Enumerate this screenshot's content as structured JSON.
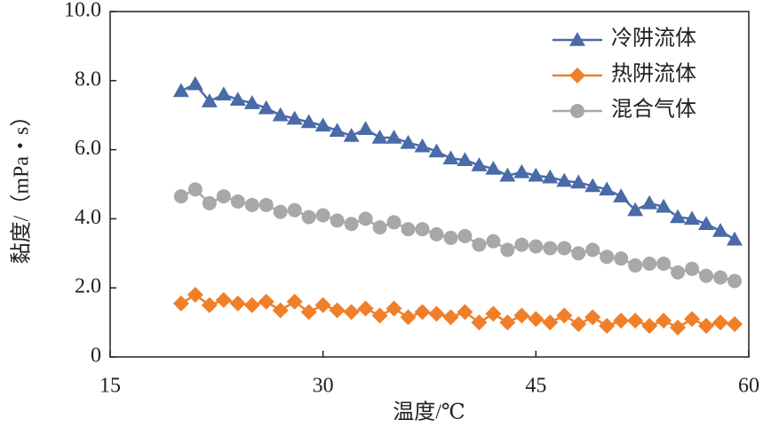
{
  "chart_data": {
    "type": "line",
    "xlabel": "温度/℃",
    "ylabel": "黏度/（mPa・s）",
    "x": [
      20,
      21,
      22,
      23,
      24,
      25,
      26,
      27,
      28,
      29,
      30,
      31,
      32,
      33,
      34,
      35,
      36,
      37,
      38,
      39,
      40,
      41,
      42,
      43,
      44,
      45,
      46,
      47,
      48,
      49,
      50,
      51,
      52,
      53,
      54,
      55,
      56,
      57,
      58,
      59
    ],
    "series": [
      {
        "name": "冷阱流体",
        "color": "#4a6aa8",
        "marker": "triangle",
        "values": [
          7.7,
          7.9,
          7.4,
          7.6,
          7.45,
          7.35,
          7.2,
          7.0,
          6.9,
          6.8,
          6.7,
          6.55,
          6.4,
          6.6,
          6.35,
          6.35,
          6.2,
          6.1,
          5.95,
          5.75,
          5.7,
          5.55,
          5.45,
          5.25,
          5.35,
          5.25,
          5.2,
          5.1,
          5.05,
          4.95,
          4.85,
          4.65,
          4.25,
          4.45,
          4.35,
          4.05,
          4.0,
          3.85,
          3.65,
          3.4
        ]
      },
      {
        "name": "热阱流体",
        "color": "#f07f2a",
        "marker": "diamond",
        "values": [
          1.55,
          1.8,
          1.5,
          1.65,
          1.55,
          1.5,
          1.6,
          1.35,
          1.6,
          1.3,
          1.5,
          1.35,
          1.3,
          1.4,
          1.2,
          1.4,
          1.15,
          1.3,
          1.25,
          1.15,
          1.3,
          1.0,
          1.25,
          1.0,
          1.2,
          1.1,
          1.0,
          1.2,
          0.95,
          1.15,
          0.9,
          1.05,
          1.05,
          0.9,
          1.05,
          0.85,
          1.1,
          0.9,
          1.0,
          0.95
        ]
      },
      {
        "name": "混合气体",
        "color": "#a8a8a8",
        "marker": "circle",
        "values": [
          4.65,
          4.85,
          4.45,
          4.65,
          4.5,
          4.4,
          4.4,
          4.2,
          4.25,
          4.05,
          4.1,
          3.95,
          3.85,
          4.0,
          3.75,
          3.9,
          3.7,
          3.7,
          3.55,
          3.45,
          3.5,
          3.25,
          3.35,
          3.1,
          3.25,
          3.2,
          3.15,
          3.15,
          3.0,
          3.1,
          2.9,
          2.85,
          2.65,
          2.7,
          2.7,
          2.45,
          2.55,
          2.35,
          2.3,
          2.2
        ]
      }
    ],
    "xlim": [
      15,
      60
    ],
    "xticks": [
      15,
      30,
      45,
      60
    ],
    "ylim": [
      0,
      10
    ],
    "yticks": [
      0,
      {
        "value": 2,
        "label": "2.0"
      },
      {
        "value": 4,
        "label": "4.0"
      },
      {
        "value": 6,
        "label": "6.0"
      },
      {
        "value": 8,
        "label": "8.0"
      },
      {
        "value": 10,
        "label": "10.0"
      }
    ],
    "legend": "upper right"
  }
}
